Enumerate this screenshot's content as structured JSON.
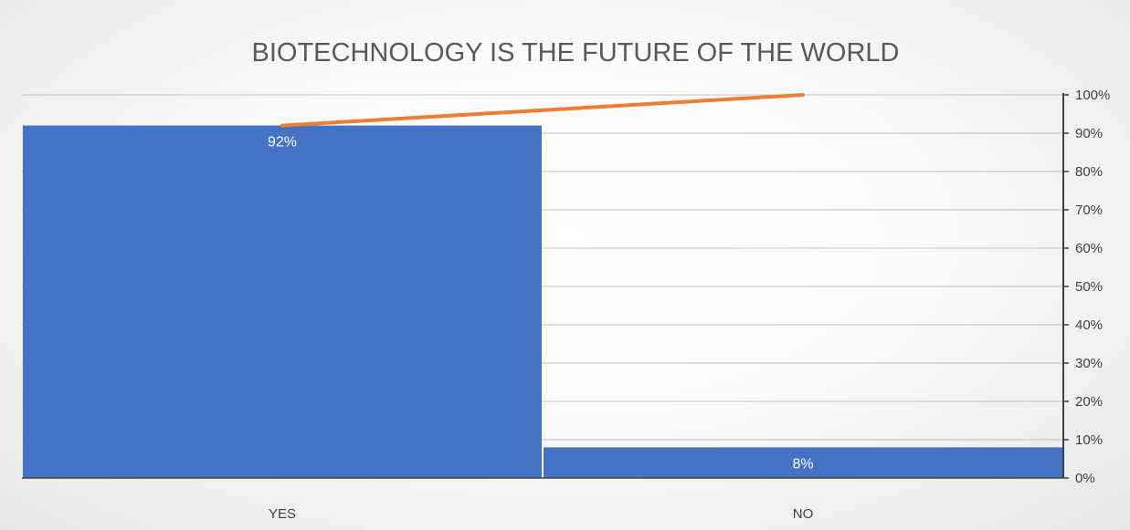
{
  "chart_data": {
    "type": "bar",
    "title": "BIOTECHNOLOGY IS THE FUTURE OF THE WORLD",
    "categories": [
      "YES",
      "NO"
    ],
    "values": [
      92,
      8
    ],
    "data_labels": [
      "92%",
      "8%"
    ],
    "bar_color": "#4472C4",
    "line_series": {
      "values": [
        92,
        100
      ],
      "color": "#ED7D31",
      "axis": "secondary"
    },
    "y_axis": {
      "position": "right",
      "ylim": [
        0,
        100
      ],
      "ticks": [
        0,
        10,
        20,
        30,
        40,
        50,
        60,
        70,
        80,
        90,
        100
      ],
      "tick_labels": [
        "0%",
        "10%",
        "20%",
        "30%",
        "40%",
        "50%",
        "60%",
        "70%",
        "80%",
        "90%",
        "100%"
      ]
    },
    "grid": true,
    "legend": false
  }
}
